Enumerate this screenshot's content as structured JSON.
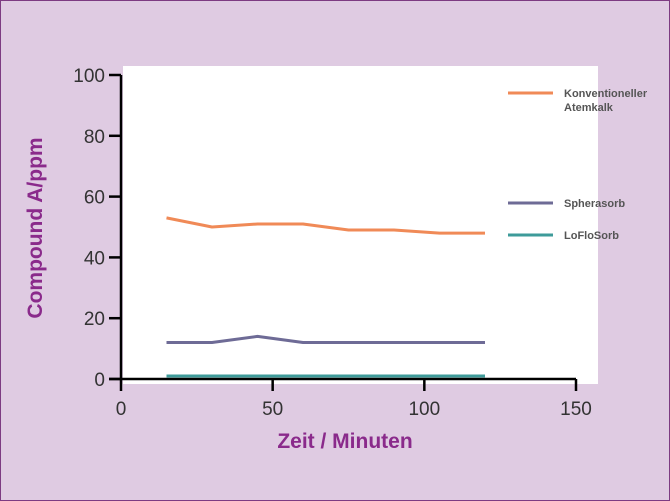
{
  "chart_data": {
    "type": "line",
    "xlabel": "Zeit / Minuten",
    "ylabel": "Compound A/ppm",
    "xlim": [
      0,
      150
    ],
    "ylim": [
      0,
      100
    ],
    "x_ticks": [
      0,
      50,
      100,
      150
    ],
    "y_ticks": [
      0,
      20,
      40,
      60,
      80,
      100
    ],
    "grid": false,
    "legend_position": "top-right",
    "series": [
      {
        "name": "Konventioneller Atemkalk",
        "color": "#f08a57",
        "x": [
          15,
          30,
          45,
          60,
          75,
          90,
          105,
          120
        ],
        "values": [
          53,
          50,
          51,
          51,
          49,
          49,
          48,
          48
        ]
      },
      {
        "name": "Spherasorb",
        "color": "#6e6b96",
        "x": [
          15,
          30,
          45,
          60,
          75,
          90,
          105,
          120
        ],
        "values": [
          12,
          12,
          14,
          12,
          12,
          12,
          12,
          12
        ]
      },
      {
        "name": "LoFloSorb",
        "color": "#3e9b9a",
        "x": [
          15,
          30,
          45,
          60,
          75,
          90,
          105,
          120
        ],
        "values": [
          1,
          1,
          1,
          1,
          1,
          1,
          1,
          1
        ]
      }
    ]
  }
}
